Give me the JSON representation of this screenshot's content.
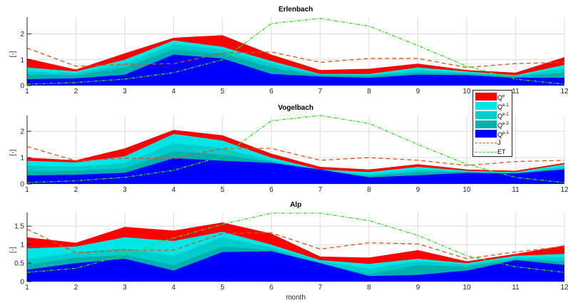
{
  "chart_data": [
    {
      "type": "area",
      "title": "Erlenbach",
      "xlabel": "",
      "ylabel": "[-]",
      "x": [
        1,
        2,
        3,
        4,
        5,
        6,
        7,
        8,
        9,
        10,
        11,
        12
      ],
      "xticks": [
        "1",
        "2",
        "3",
        "4",
        "5",
        "6",
        "7",
        "8",
        "9",
        "10",
        "11",
        "12"
      ],
      "yticks": [
        "0",
        "1",
        "2"
      ],
      "ytick_values": [
        0,
        1,
        2
      ],
      "ylim": [
        0,
        2.65
      ],
      "xlim": [
        1,
        12
      ],
      "grid": true,
      "series": [
        {
          "name": "Qe",
          "kind": "area",
          "values": [
            1.05,
            0.62,
            1.25,
            1.85,
            1.95,
            1.2,
            0.6,
            0.65,
            0.85,
            0.6,
            0.5,
            1.1
          ]
        },
        {
          "name": "Qe-1",
          "kind": "area",
          "values": [
            0.7,
            0.55,
            1.0,
            1.75,
            1.5,
            0.95,
            0.45,
            0.45,
            0.7,
            0.55,
            0.4,
            0.8
          ]
        },
        {
          "name": "Qe-2",
          "kind": "area",
          "values": [
            0.55,
            0.48,
            0.85,
            1.6,
            1.4,
            0.85,
            0.42,
            0.4,
            0.6,
            0.5,
            0.38,
            0.65
          ]
        },
        {
          "name": "Qe-3",
          "kind": "area",
          "values": [
            0.42,
            0.4,
            0.7,
            1.4,
            1.25,
            0.7,
            0.4,
            0.38,
            0.5,
            0.45,
            0.35,
            0.5
          ]
        },
        {
          "name": "Qp-3",
          "kind": "area",
          "values": [
            0.25,
            0.28,
            0.42,
            1.2,
            1.05,
            0.45,
            0.35,
            0.3,
            0.42,
            0.4,
            0.3,
            0.3
          ]
        },
        {
          "name": "J",
          "kind": "line",
          "values": [
            1.45,
            0.75,
            0.82,
            0.85,
            1.25,
            1.3,
            0.9,
            1.05,
            1.05,
            0.7,
            0.85,
            0.9
          ]
        },
        {
          "name": "ET",
          "kind": "line",
          "values": [
            0.05,
            0.12,
            0.25,
            0.5,
            1.0,
            2.4,
            2.6,
            2.3,
            1.55,
            0.75,
            0.25,
            0.05
          ]
        }
      ]
    },
    {
      "type": "area",
      "title": "Vogelbach",
      "xlabel": "",
      "ylabel": "[-]",
      "x": [
        1,
        2,
        3,
        4,
        5,
        6,
        7,
        8,
        9,
        10,
        11,
        12
      ],
      "xticks": [
        "1",
        "2",
        "3",
        "4",
        "5",
        "6",
        "7",
        "8",
        "9",
        "10",
        "11",
        "12"
      ],
      "yticks": [
        "0",
        "1",
        "2"
      ],
      "ytick_values": [
        0,
        1,
        2
      ],
      "ylim": [
        0,
        2.6
      ],
      "xlim": [
        1,
        12
      ],
      "grid": true,
      "series": [
        {
          "name": "Qe",
          "kind": "area",
          "values": [
            1.0,
            0.9,
            1.35,
            2.05,
            1.85,
            1.15,
            0.65,
            0.55,
            0.75,
            0.55,
            0.5,
            0.8
          ]
        },
        {
          "name": "Qe-1",
          "kind": "area",
          "values": [
            0.88,
            0.82,
            1.05,
            1.9,
            1.65,
            1.0,
            0.55,
            0.45,
            0.65,
            0.5,
            0.45,
            0.75
          ]
        },
        {
          "name": "Qe-2",
          "kind": "area",
          "values": [
            0.7,
            0.65,
            0.8,
            1.55,
            1.35,
            0.9,
            0.52,
            0.35,
            0.55,
            0.47,
            0.43,
            0.65
          ]
        },
        {
          "name": "Qe-3",
          "kind": "area",
          "values": [
            0.5,
            0.5,
            0.6,
            1.25,
            1.1,
            0.85,
            0.5,
            0.3,
            0.45,
            0.45,
            0.4,
            0.6
          ]
        },
        {
          "name": "Qp-3",
          "kind": "area",
          "values": [
            0.32,
            0.35,
            0.42,
            0.98,
            0.88,
            0.8,
            0.55,
            0.25,
            0.33,
            0.42,
            0.4,
            0.55
          ]
        },
        {
          "name": "J",
          "kind": "line",
          "values": [
            1.42,
            0.88,
            0.98,
            0.95,
            1.35,
            1.35,
            0.9,
            1.0,
            0.9,
            0.7,
            0.85,
            0.9
          ]
        },
        {
          "name": "ET",
          "kind": "line",
          "values": [
            0.05,
            0.12,
            0.25,
            0.52,
            1.05,
            2.4,
            2.6,
            2.3,
            1.5,
            0.75,
            0.25,
            0.05
          ]
        }
      ]
    },
    {
      "type": "area",
      "title": "Alp",
      "xlabel": "month",
      "ylabel": "[-]",
      "x": [
        1,
        2,
        3,
        4,
        5,
        6,
        7,
        8,
        9,
        10,
        11,
        12
      ],
      "xticks": [
        "1",
        "2",
        "3",
        "4",
        "5",
        "6",
        "7",
        "8",
        "9",
        "10",
        "11",
        "12"
      ],
      "yticks": [
        "0",
        "0.5",
        "1",
        "1.5"
      ],
      "ytick_values": [
        0,
        0.5,
        1,
        1.5
      ],
      "ylim": [
        0,
        1.87
      ],
      "xlim": [
        1,
        12
      ],
      "grid": true,
      "series": [
        {
          "name": "Qe",
          "kind": "area",
          "values": [
            1.2,
            1.05,
            1.48,
            1.38,
            1.6,
            1.3,
            0.68,
            0.65,
            0.85,
            0.55,
            0.75,
            0.98
          ]
        },
        {
          "name": "Qe-1",
          "kind": "area",
          "values": [
            0.9,
            0.95,
            1.2,
            1.1,
            1.35,
            1.0,
            0.58,
            0.48,
            0.62,
            0.5,
            0.7,
            0.75
          ]
        },
        {
          "name": "Qe-2",
          "kind": "area",
          "values": [
            0.6,
            0.8,
            0.9,
            0.7,
            1.2,
            0.92,
            0.55,
            0.35,
            0.55,
            0.45,
            0.65,
            0.65
          ]
        },
        {
          "name": "Qe-3",
          "kind": "area",
          "values": [
            0.45,
            0.65,
            0.72,
            0.45,
            0.95,
            0.85,
            0.5,
            0.2,
            0.45,
            0.4,
            0.6,
            0.55
          ]
        },
        {
          "name": "Qp-3",
          "kind": "area",
          "values": [
            0.32,
            0.5,
            0.62,
            0.3,
            0.8,
            0.82,
            0.5,
            0.15,
            0.18,
            0.3,
            0.58,
            0.45
          ]
        },
        {
          "name": "J",
          "kind": "line",
          "values": [
            1.42,
            0.78,
            0.85,
            0.85,
            1.3,
            1.32,
            0.88,
            1.05,
            1.02,
            0.62,
            0.8,
            0.95
          ]
        },
        {
          "name": "ET",
          "kind": "line",
          "values": [
            0.25,
            0.36,
            0.72,
            1.18,
            1.55,
            1.85,
            1.85,
            1.65,
            1.25,
            0.7,
            0.4,
            0.25
          ]
        }
      ]
    }
  ],
  "legend": {
    "placement": "right",
    "items": [
      {
        "base": "Q",
        "sup": "e",
        "kind": "area",
        "color": "#ff0000"
      },
      {
        "base": "Q",
        "sup": "e-1",
        "kind": "area",
        "color": "#00e6e6"
      },
      {
        "base": "Q",
        "sup": "e-2",
        "kind": "area",
        "color": "#00cccc"
      },
      {
        "base": "Q",
        "sup": "e-3",
        "kind": "area",
        "color": "#00b0b0"
      },
      {
        "base": "Q",
        "sup": "p-3",
        "kind": "area",
        "color": "#0000ff"
      },
      {
        "base": "J",
        "sup": "",
        "kind": "dashed",
        "color": "#d95319"
      },
      {
        "base": "ET",
        "sup": "",
        "kind": "dashdot",
        "color": "#33dd22"
      }
    ]
  },
  "colors": {
    "Qe": "#ff0000",
    "Qe-1": "#00e6e6",
    "Qe-2": "#00cccc",
    "Qe-3": "#00b0b0",
    "Qp-3": "#0000ff",
    "J": "#d95319",
    "ET": "#33dd22"
  }
}
